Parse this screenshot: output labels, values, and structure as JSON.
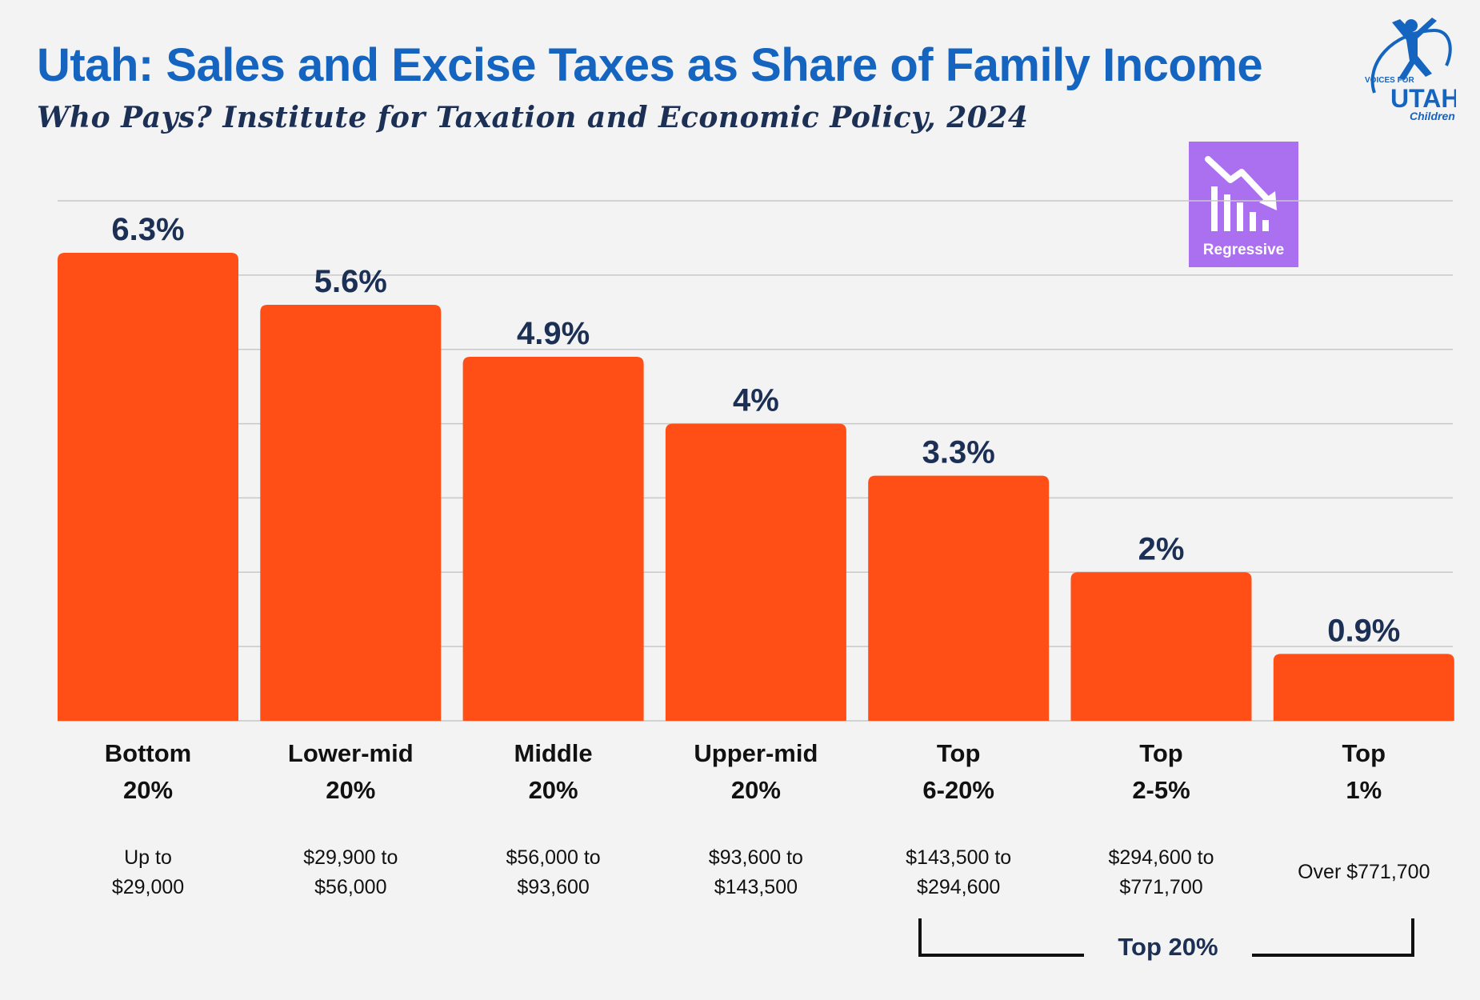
{
  "header": {
    "title": "Utah: Sales and Excise Taxes as Share of Family Income",
    "subtitle": "Who Pays? Institute for Taxation and Economic Policy, 2024"
  },
  "logo": {
    "top_text": "VOICES FOR",
    "main_text": "UTAH",
    "bottom_text": "Children"
  },
  "badge": {
    "label": "Regressive",
    "icon": "trending-down-bars-icon",
    "color": "#ab70f0"
  },
  "chart_data": {
    "type": "bar",
    "title": "Utah: Sales and Excise Taxes as Share of Family Income",
    "categories": [
      "Bottom 20%",
      "Lower-mid 20%",
      "Middle 20%",
      "Upper-mid 20%",
      "Top 6-20%",
      "Top 2-5%",
      "Top 1%"
    ],
    "values": [
      6.3,
      5.6,
      4.9,
      4.0,
      3.3,
      2.0,
      0.9
    ],
    "value_labels": [
      "6.3%",
      "5.6%",
      "4.9%",
      "4%",
      "3.3%",
      "2%",
      "0.9%"
    ],
    "category_lines": [
      [
        "Bottom",
        "20%"
      ],
      [
        "Lower-mid",
        "20%"
      ],
      [
        "Middle",
        "20%"
      ],
      [
        "Upper-mid",
        "20%"
      ],
      [
        "Top",
        "6-20%"
      ],
      [
        "Top",
        "2-5%"
      ],
      [
        "Top",
        "1%"
      ]
    ],
    "income_ranges": [
      [
        "Up to",
        "$29,000"
      ],
      [
        "$29,900 to",
        "$56,000"
      ],
      [
        "$56,000 to",
        "$93,600"
      ],
      [
        "$93,600 to",
        "$143,500"
      ],
      [
        "$143,500 to",
        "$294,600"
      ],
      [
        "$294,600 to",
        "$771,700"
      ],
      [
        "Over $771,700"
      ]
    ],
    "bracket_label": "Top 20%",
    "xlabel": "",
    "ylabel": "",
    "ylim": [
      0,
      7
    ],
    "grid": true,
    "bar_color": "#ff4f17"
  }
}
